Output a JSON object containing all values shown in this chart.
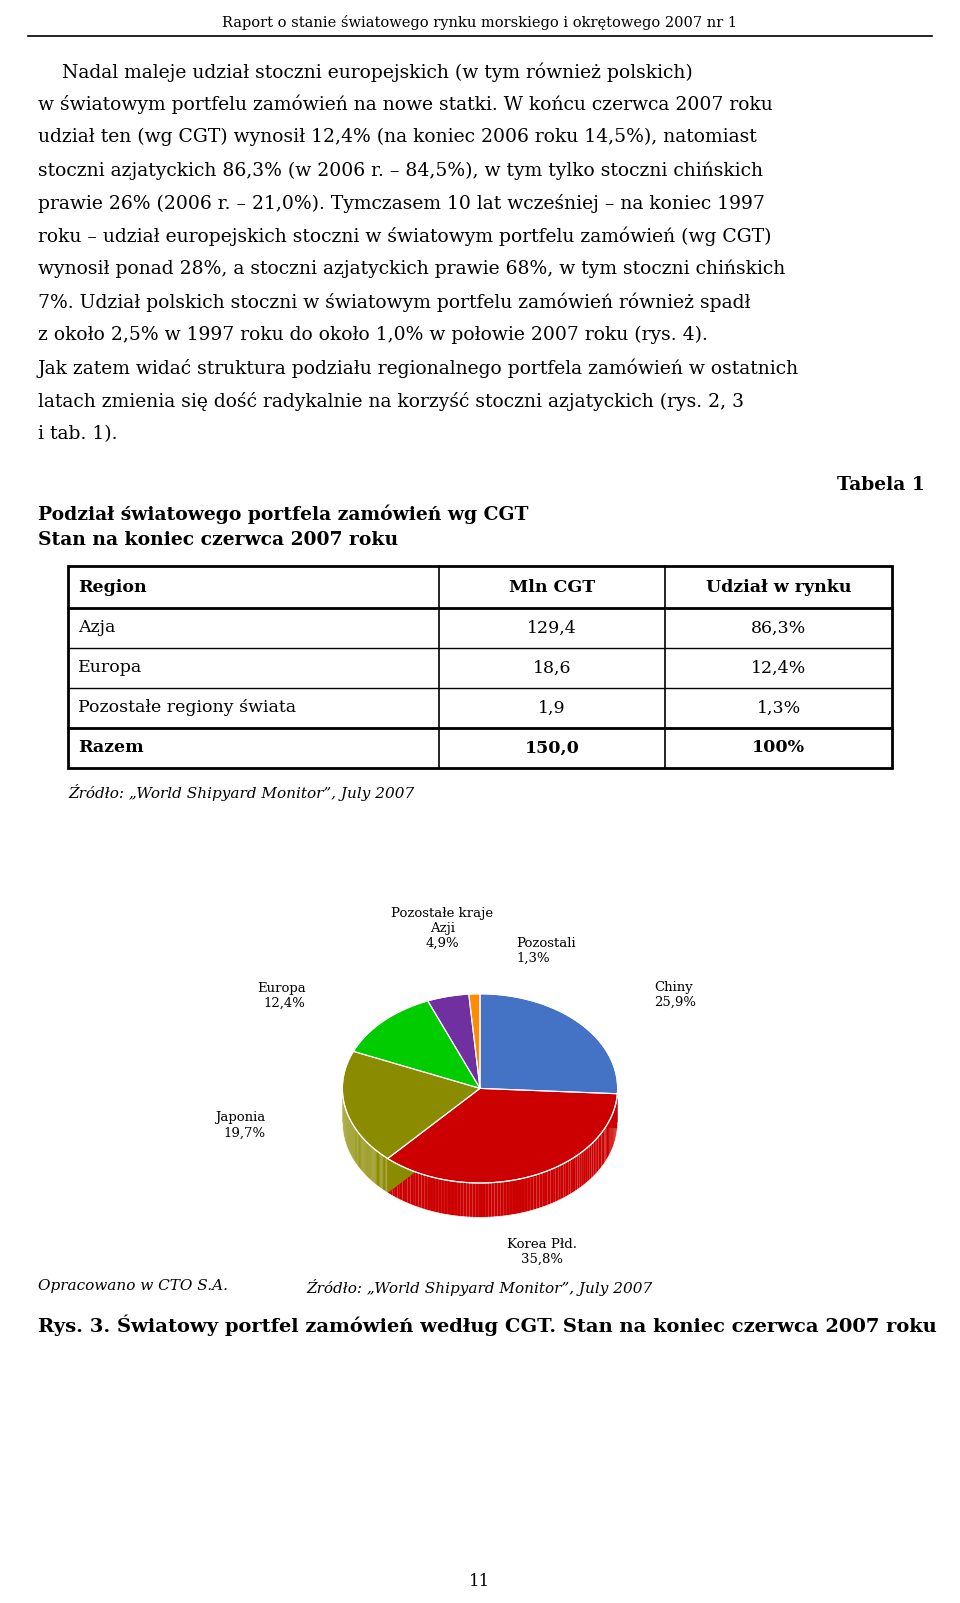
{
  "header_text": "Raport o stanie światowego rynku morskiego i okrętowego 2007 nr 1",
  "lines": [
    "    Nadal maleje udział stoczni europejskich (w tym również polskich)",
    "w światowym portfelu zamówień na nowe statki. W końcu czerwca 2007 roku",
    "udział ten (wg CGT) wynosił 12,4% (na koniec 2006 roku 14,5%), natomiast",
    "stoczni azjatyckich 86,3% (w 2006 r. – 84,5%), w tym tylko stoczni chińskich",
    "prawie 26% (2006 r. – 21,0%). Tymczasem 10 lat wcześniej – na koniec 1997",
    "roku – udział europejskich stoczni w światowym portfelu zamówień (wg CGT)",
    "wynosił ponad 28%, a stoczni azjatyckich prawie 68%, w tym stoczni chińskich",
    "7%. Udział polskich stoczni w światowym portfelu zamówień również spadł",
    "z około 2,5% w 1997 roku do około 1,0% w połowie 2007 roku (rys. 4).",
    "Jak zatem widać struktura podziału regionalnego portfela zamówień w ostatnich",
    "latach zmienia się dość radykalnie na korzyść stoczni azjatyckich (rys. 2, 3",
    "i tab. 1)."
  ],
  "table_label": "Tabela 1",
  "table_title1": "Podział światowego portfela zamówień wg CGT",
  "table_title2": "Stan na koniec czerwca 2007 roku",
  "table_headers": [
    "Region",
    "Mln CGT",
    "Udział w rynku"
  ],
  "table_rows": [
    [
      "Azja",
      "129,4",
      "86,3%"
    ],
    [
      "Europa",
      "18,6",
      "12,4%"
    ],
    [
      "Pozostałe regiony świata",
      "1,9",
      "1,3%"
    ],
    [
      "Razem",
      "150,0",
      "100%"
    ]
  ],
  "table_source": "Źródło: „World Shipyard Monitor”, July 2007",
  "pie_slices": [
    25.9,
    35.8,
    19.7,
    12.4,
    4.9,
    1.3
  ],
  "pie_colors": [
    "#4472c4",
    "#cc0000",
    "#8b8b00",
    "#00cc00",
    "#7030a0",
    "#ff8c00"
  ],
  "pie_slice_names": [
    "Chiny",
    "Korea Płd.",
    "Japonia",
    "Europa",
    "Pozostałe kraje Azji",
    "Pozostali"
  ],
  "pie_slice_pcts": [
    "25,9%",
    "35,8%",
    "19,7%",
    "12,4%",
    "4,9%",
    "1,3%"
  ],
  "pie_caption_left": "Opracowano w CTO S.A.",
  "pie_source": "Źródło: „World Shipyard Monitor”, July 2007",
  "caption_title": "Rys. 3. Światowy portfel zamówień według CGT. Stan na koniec czerwca 2007 roku",
  "footer_page": "11",
  "bg_color": "#ffffff",
  "text_color": "#000000",
  "body_fontsize": 13.5,
  "header_fontsize": 10.5,
  "table_fontsize": 12.5
}
